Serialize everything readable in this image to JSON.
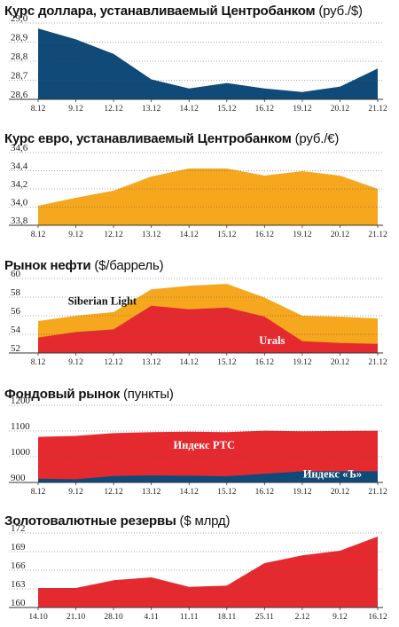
{
  "colors": {
    "navy": "#0f4a78",
    "orange": "#f5a71e",
    "red": "#e52a2f",
    "white": "#ffffff",
    "grid": "#444444"
  },
  "chart_data": [
    {
      "type": "area",
      "title": "Курс доллара, устанавливаемый Центробанком",
      "unit": "(руб./$)",
      "categories": [
        "8.12",
        "9.12",
        "12.12",
        "13.12",
        "14.12",
        "15.12",
        "16.12",
        "19.12",
        "20.12",
        "21.12"
      ],
      "yticks": [
        "29,0",
        "28,9",
        "28,8",
        "28,7",
        "28,6"
      ],
      "ylim": [
        28.58,
        29.0
      ],
      "series": [
        {
          "values": [
            28.97,
            28.91,
            28.83,
            28.69,
            28.64,
            28.67,
            28.64,
            28.62,
            28.65,
            28.75
          ],
          "color": "#0f4a78"
        }
      ]
    },
    {
      "type": "area",
      "title": "Курс евро, устанавливаемый Центробанком",
      "unit": "(руб./€)",
      "categories": [
        "8.12",
        "9.12",
        "12.12",
        "13.12",
        "14.12",
        "15.12",
        "16.12",
        "19.12",
        "20.12",
        "21.12"
      ],
      "yticks": [
        "34,6",
        "34,4",
        "34,2",
        "34,0",
        "33,8"
      ],
      "ylim": [
        33.78,
        34.6
      ],
      "series": [
        {
          "values": [
            34.0,
            34.09,
            34.17,
            34.33,
            34.42,
            34.42,
            34.34,
            34.39,
            34.34,
            34.19
          ],
          "color": "#f5a71e"
        }
      ]
    },
    {
      "type": "area",
      "title": "Рынок нефти",
      "unit": "($/баррель)",
      "categories": [
        "8.12",
        "9.12",
        "12.12",
        "13.12",
        "14.12",
        "15.12",
        "16.12",
        "19.12",
        "20.12",
        "21.12"
      ],
      "yticks": [
        "60",
        "58",
        "56",
        "54",
        "52"
      ],
      "ylim": [
        51.8,
        60.0
      ],
      "series": [
        {
          "name": "Siberian Light",
          "values": [
            55.3,
            55.9,
            56.3,
            58.8,
            59.2,
            59.4,
            57.9,
            55.9,
            55.8,
            55.6
          ],
          "color": "#f5a71e",
          "label_x": 1.7,
          "label_y": 57.1,
          "label_color": "#111111"
        },
        {
          "name": "Urals",
          "values": [
            53.5,
            54.1,
            54.4,
            57.0,
            56.6,
            56.8,
            55.8,
            53.1,
            52.9,
            52.8
          ],
          "color": "#e52a2f",
          "label_x": 6.2,
          "label_y": 52.8,
          "label_color": "#ffffff"
        }
      ]
    },
    {
      "type": "area",
      "title": "Фондовый рынок",
      "unit": "(пункты)",
      "categories": [
        "8.12",
        "9.12",
        "12.12",
        "13.12",
        "14.12",
        "15.12",
        "16.12",
        "19.12",
        "20.12",
        "21.12"
      ],
      "yticks": [
        "1200",
        "1100",
        "1000",
        "900"
      ],
      "ylim": [
        890,
        1200
      ],
      "series": [
        {
          "name": "Индекс РТС",
          "values": [
            1073,
            1077,
            1088,
            1092,
            1094,
            1092,
            1098,
            1096,
            1097,
            1098
          ],
          "color": "#e52a2f",
          "label_x": 4.4,
          "label_y": 1025,
          "label_color": "#ffffff"
        },
        {
          "name": "Индекс «Ъ»",
          "values": [
            905,
            903,
            916,
            918,
            917,
            915,
            925,
            935,
            935,
            935
          ],
          "color": "#0f4a78",
          "label_x": 7.8,
          "label_y": 909,
          "label_color": "#ffffff"
        }
      ]
    },
    {
      "type": "area",
      "title": "Золотовалютные резервы",
      "unit": "($ млрд)",
      "categories": [
        "14.10",
        "21.10",
        "28.10",
        "4.11",
        "11.11",
        "18.11",
        "25.11",
        "2.12",
        "9.12",
        "16.12"
      ],
      "yticks": [
        "172",
        "169",
        "166",
        "163",
        "160"
      ],
      "ylim": [
        159.4,
        172.0
      ],
      "series": [
        {
          "values": [
            162.7,
            162.7,
            164.0,
            164.5,
            162.9,
            163.1,
            166.9,
            168.2,
            169.0,
            171.4
          ],
          "color": "#e52a2f"
        }
      ]
    }
  ]
}
